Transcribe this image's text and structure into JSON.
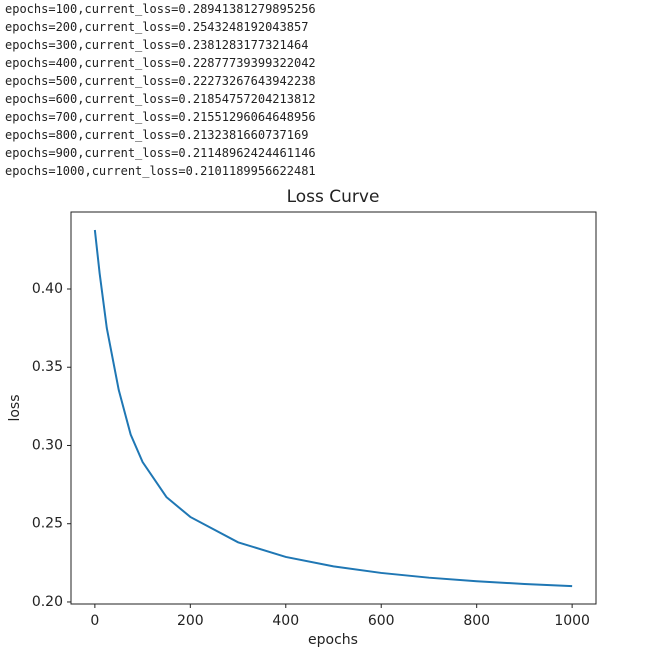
{
  "log_lines": [
    "epochs=100,current_loss=0.28941381279895256",
    "epochs=200,current_loss=0.2543248192043857",
    "epochs=300,current_loss=0.2381283177321464",
    "epochs=400,current_loss=0.22877739399322042",
    "epochs=500,current_loss=0.22273267643942238",
    "epochs=600,current_loss=0.21854757204213812",
    "epochs=700,current_loss=0.21551296064648956",
    "epochs=800,current_loss=0.2132381660737169",
    "epochs=900,current_loss=0.21148962424461146",
    "epochs=1000,current_loss=0.2101189956622481"
  ],
  "chart_data": {
    "type": "line",
    "title": "Loss Curve",
    "x_label": "epochs",
    "y_label": "loss",
    "x": [
      0,
      10,
      25,
      50,
      75,
      100,
      150,
      200,
      300,
      400,
      500,
      600,
      700,
      800,
      900,
      1000
    ],
    "series": [
      {
        "name": "loss",
        "color": "#1f77b4",
        "values": [
          0.4377,
          0.41,
          0.375,
          0.3355,
          0.307,
          0.28941381279895256,
          0.267,
          0.2543248192043857,
          0.2381283177321464,
          0.22877739399322042,
          0.22273267643942238,
          0.21854757204213812,
          0.21551296064648956,
          0.2132381660737169,
          0.21148962424461146,
          0.2101189956622481
        ]
      }
    ],
    "xlim": [
      -50,
      1050
    ],
    "ylim": [
      0.1987,
      0.4492
    ],
    "xticks": [
      0,
      200,
      400,
      600,
      800,
      1000
    ],
    "yticks": [
      {
        "value": 0.2,
        "label": "0.20"
      },
      0.25,
      {
        "value": 0.3,
        "label": "0.30"
      },
      0.35,
      {
        "value": 0.4,
        "label": "0.40"
      }
    ]
  }
}
